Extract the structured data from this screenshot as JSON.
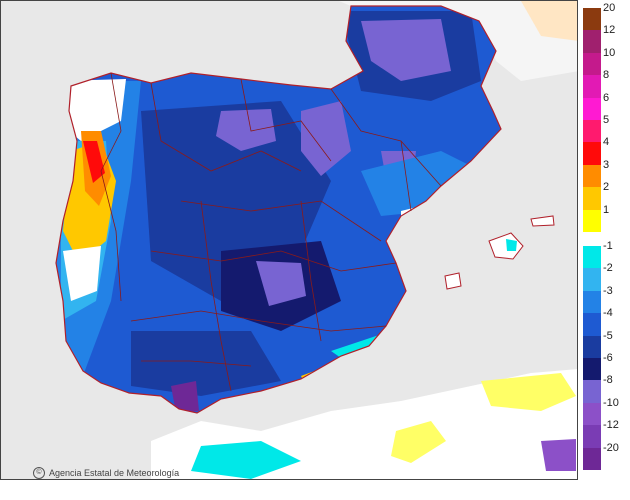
{
  "map": {
    "credit": "Agencia Estatal de Meteorología",
    "colors": {
      "sea": "#e8e8e8",
      "land_neutral": "#ffffff",
      "border": "#8a1a1a",
      "coast": "#b0202a"
    }
  },
  "legend": {
    "items": [
      {
        "label": "20",
        "color": "#8b3a0f"
      },
      {
        "label": "12",
        "color": "#a0206e"
      },
      {
        "label": "10",
        "color": "#c41a8c"
      },
      {
        "label": "8",
        "color": "#e21ab4"
      },
      {
        "label": "6",
        "color": "#ff1ad2"
      },
      {
        "label": "5",
        "color": "#ff1a6e"
      },
      {
        "label": "4",
        "color": "#ff0a0a"
      },
      {
        "label": "3",
        "color": "#ff8c00"
      },
      {
        "label": "2",
        "color": "#ffc800"
      },
      {
        "label": "1",
        "color": "#ffff00"
      },
      {
        "label": "-1",
        "color": "#00e8e8"
      },
      {
        "label": "-2",
        "color": "#32b4f0"
      },
      {
        "label": "-3",
        "color": "#2382e6"
      },
      {
        "label": "-4",
        "color": "#1e5ad2"
      },
      {
        "label": "-5",
        "color": "#1a3ca0"
      },
      {
        "label": "-6",
        "color": "#141a6e"
      },
      {
        "label": "-8",
        "color": "#7864d2"
      },
      {
        "label": "-10",
        "color": "#8c50c8"
      },
      {
        "label": "-12",
        "color": "#7a3cb4"
      },
      {
        "label": "-20",
        "color": "#6e2896"
      }
    ]
  }
}
